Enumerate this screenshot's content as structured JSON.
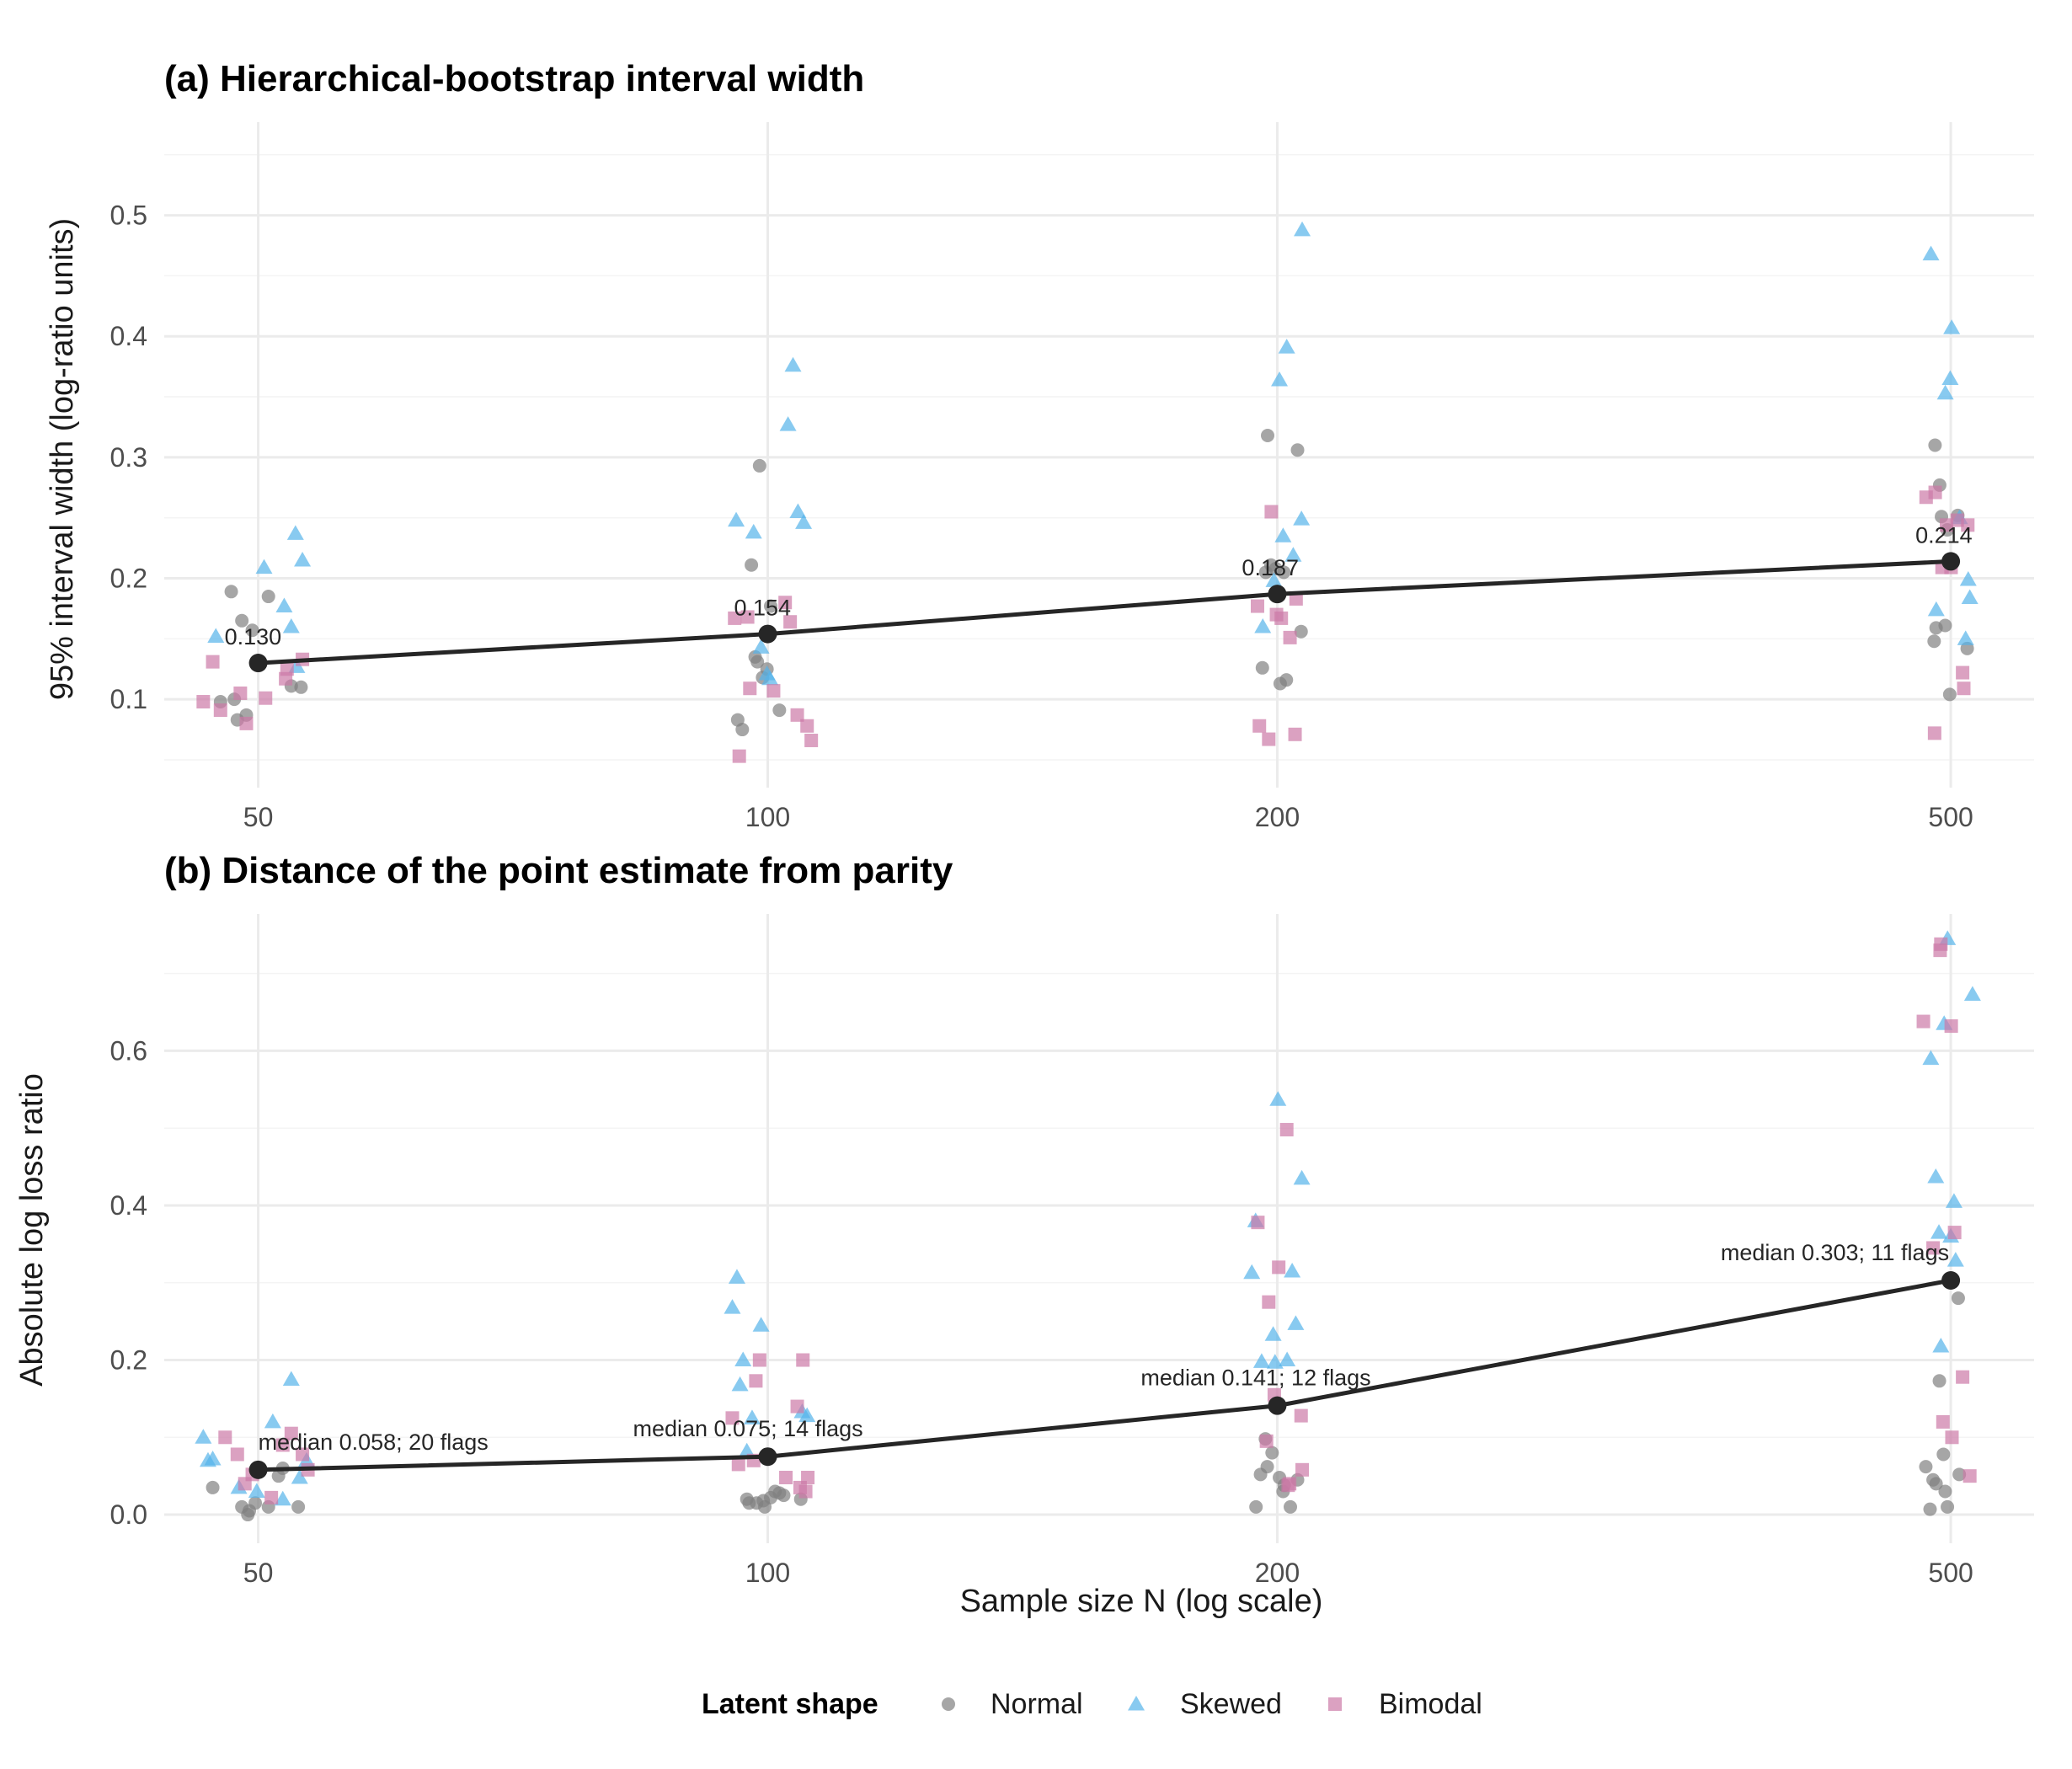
{
  "chart_data": [
    {
      "type": "scatter",
      "title": "(a) Hierarchical-bootstrap interval width",
      "xlabel": "",
      "ylabel": "95% interval width (log-ratio units)",
      "x_scale": "log",
      "x_ticks": [
        50,
        100,
        200,
        500
      ],
      "x_tick_labels": [
        "50",
        "100",
        "200",
        "500"
      ],
      "xlim": [
        44,
        560
      ],
      "y_ticks": [
        0.1,
        0.2,
        0.3,
        0.4,
        0.5
      ],
      "y_tick_labels": [
        "0.1",
        "0.2",
        "0.3",
        "0.4",
        "0.5"
      ],
      "ylim": [
        0.027,
        0.577
      ],
      "grid": true,
      "series": [
        {
          "name": "Normal",
          "shape": "circle",
          "color": "#808080",
          "points": [
            [
              47.5,
              0.098
            ],
            [
              48.2,
              0.189
            ],
            [
              48.6,
              0.083
            ],
            [
              48.9,
              0.165
            ],
            [
              49.2,
              0.087
            ],
            [
              49.6,
              0.157
            ],
            [
              50.7,
              0.185
            ],
            [
              52.3,
              0.111
            ],
            [
              53.0,
              0.11
            ],
            [
              48.4,
              0.1
            ],
            [
              96.0,
              0.083
            ],
            [
              96.6,
              0.075
            ],
            [
              97.8,
              0.211
            ],
            [
              98.3,
              0.135
            ],
            [
              98.6,
              0.131
            ],
            [
              98.9,
              0.293
            ],
            [
              99.3,
              0.118
            ],
            [
              100.4,
              0.177
            ],
            [
              101.6,
              0.091
            ],
            [
              99.9,
              0.125
            ],
            [
              196.0,
              0.126
            ],
            [
              197.4,
              0.318
            ],
            [
              198.3,
              0.211
            ],
            [
              200.8,
              0.113
            ],
            [
              202.5,
              0.116
            ],
            [
              205.6,
              0.306
            ],
            [
              206.6,
              0.156
            ],
            [
              199.6,
              0.208
            ],
            [
              201.8,
              0.205
            ],
            [
              196.9,
              0.205
            ],
            [
              489.4,
              0.31
            ],
            [
              490.1,
              0.159
            ],
            [
              492.5,
              0.277
            ],
            [
              493.7,
              0.251
            ],
            [
              496.2,
              0.161
            ],
            [
              499.3,
              0.104
            ],
            [
              504.8,
              0.252
            ],
            [
              511.3,
              0.142
            ],
            [
              488.8,
              0.148
            ],
            [
              497.6,
              0.24
            ]
          ]
        },
        {
          "name": "Skewed",
          "shape": "triangle",
          "color": "#56B4E9",
          "points": [
            [
              47.2,
              0.152
            ],
            [
              50.4,
              0.209
            ],
            [
              51.8,
              0.177
            ],
            [
              52.3,
              0.16
            ],
            [
              52.6,
              0.237
            ],
            [
              53.1,
              0.215
            ],
            [
              52.7,
              0.127
            ],
            [
              95.8,
              0.248
            ],
            [
              98.1,
              0.238
            ],
            [
              99.1,
              0.143
            ],
            [
              99.9,
              0.121
            ],
            [
              100.3,
              0.117
            ],
            [
              102.8,
              0.327
            ],
            [
              103.5,
              0.376
            ],
            [
              104.2,
              0.255
            ],
            [
              105.0,
              0.246
            ],
            [
              196.1,
              0.16
            ],
            [
              200.6,
              0.364
            ],
            [
              201.6,
              0.235
            ],
            [
              202.6,
              0.391
            ],
            [
              204.4,
              0.219
            ],
            [
              206.7,
              0.249
            ],
            [
              206.9,
              0.488
            ],
            [
              199.1,
              0.198
            ],
            [
              486.7,
              0.468
            ],
            [
              490.2,
              0.174
            ],
            [
              496.3,
              0.353
            ],
            [
              499.6,
              0.365
            ],
            [
              500.6,
              0.407
            ],
            [
              506.0,
              0.25
            ],
            [
              510.2,
              0.15
            ],
            [
              512.0,
              0.199
            ],
            [
              513.1,
              0.184
            ]
          ]
        },
        {
          "name": "Bimodal",
          "shape": "square",
          "color": "#CC79A7",
          "points": [
            [
              46.4,
              0.098
            ],
            [
              47.0,
              0.131
            ],
            [
              47.5,
              0.091
            ],
            [
              48.8,
              0.105
            ],
            [
              49.2,
              0.08
            ],
            [
              50.5,
              0.101
            ],
            [
              51.9,
              0.117
            ],
            [
              53.1,
              0.133
            ],
            [
              52.0,
              0.125
            ],
            [
              95.6,
              0.167
            ],
            [
              96.2,
              0.053
            ],
            [
              97.6,
              0.109
            ],
            [
              100.8,
              0.107
            ],
            [
              102.4,
              0.18
            ],
            [
              103.1,
              0.164
            ],
            [
              104.1,
              0.087
            ],
            [
              105.5,
              0.078
            ],
            [
              106.1,
              0.066
            ],
            [
              97.3,
              0.168
            ],
            [
              194.7,
              0.177
            ],
            [
              195.2,
              0.078
            ],
            [
              197.7,
              0.067
            ],
            [
              198.4,
              0.255
            ],
            [
              201.1,
              0.167
            ],
            [
              203.5,
              0.151
            ],
            [
              204.9,
              0.071
            ],
            [
              205.2,
              0.183
            ],
            [
              199.8,
              0.17
            ],
            [
              483.5,
              0.267
            ],
            [
              489.5,
              0.271
            ],
            [
              494.1,
              0.209
            ],
            [
              497.1,
              0.244
            ],
            [
              504.4,
              0.248
            ],
            [
              508.1,
              0.122
            ],
            [
              508.9,
              0.109
            ],
            [
              511.7,
              0.244
            ],
            [
              489.1,
              0.072
            ],
            [
              500.2,
              0.209
            ]
          ]
        }
      ],
      "trend": {
        "x": [
          50,
          100,
          200,
          500
        ],
        "y": [
          0.13,
          0.154,
          0.187,
          0.214
        ],
        "color": "#262626"
      },
      "annotations": [
        "0.130",
        "0.154",
        "0.187",
        "0.214"
      ]
    },
    {
      "type": "scatter",
      "title": "(b) Distance of the point estimate from parity",
      "xlabel": "Sample size N (log scale)",
      "ylabel": "Absolute log loss ratio",
      "x_scale": "log",
      "x_ticks": [
        50,
        100,
        200,
        500
      ],
      "x_tick_labels": [
        "50",
        "100",
        "200",
        "500"
      ],
      "xlim": [
        44,
        560
      ],
      "y_ticks": [
        0.0,
        0.2,
        0.4,
        0.6
      ],
      "y_tick_labels": [
        "0.0",
        "0.2",
        "0.4",
        "0.6"
      ],
      "ylim": [
        -0.037,
        0.777
      ],
      "grid": true,
      "series": [
        {
          "name": "Normal",
          "shape": "circle",
          "color": "#808080",
          "points": [
            [
              47.0,
              0.035
            ],
            [
              48.9,
              0.01
            ],
            [
              49.3,
              0.0
            ],
            [
              49.8,
              0.015
            ],
            [
              50.7,
              0.01
            ],
            [
              51.4,
              0.05
            ],
            [
              52.8,
              0.01
            ],
            [
              49.4,
              0.005
            ],
            [
              51.7,
              0.06
            ],
            [
              97.2,
              0.02
            ],
            [
              97.5,
              0.015
            ],
            [
              98.5,
              0.015
            ],
            [
              99.4,
              0.018
            ],
            [
              100.4,
              0.022
            ],
            [
              101.0,
              0.03
            ],
            [
              101.6,
              0.028
            ],
            [
              104.6,
              0.02
            ],
            [
              99.6,
              0.01
            ],
            [
              102.2,
              0.025
            ],
            [
              194.3,
              0.01
            ],
            [
              195.5,
              0.052
            ],
            [
              196.8,
              0.098
            ],
            [
              197.3,
              0.062
            ],
            [
              198.6,
              0.08
            ],
            [
              200.6,
              0.048
            ],
            [
              201.6,
              0.03
            ],
            [
              201.9,
              0.038
            ],
            [
              203.6,
              0.01
            ],
            [
              205.6,
              0.045
            ],
            [
              483.3,
              0.062
            ],
            [
              486.1,
              0.007
            ],
            [
              488.1,
              0.045
            ],
            [
              490.1,
              0.04
            ],
            [
              492.3,
              0.173
            ],
            [
              495.0,
              0.078
            ],
            [
              496.2,
              0.03
            ],
            [
              497.7,
              0.01
            ],
            [
              505.1,
              0.28
            ],
            [
              505.8,
              0.052
            ]
          ]
        },
        {
          "name": "Skewed",
          "shape": "triangle",
          "color": "#56B4E9",
          "points": [
            [
              46.4,
              0.1
            ],
            [
              46.7,
              0.07
            ],
            [
              47.0,
              0.072
            ],
            [
              48.7,
              0.035
            ],
            [
              49.9,
              0.03
            ],
            [
              51.0,
              0.12
            ],
            [
              51.7,
              0.02
            ],
            [
              52.3,
              0.175
            ],
            [
              52.9,
              0.048
            ],
            [
              53.4,
              0.07
            ],
            [
              95.3,
              0.268
            ],
            [
              95.9,
              0.307
            ],
            [
              96.3,
              0.168
            ],
            [
              96.7,
              0.2
            ],
            [
              97.2,
              0.082
            ],
            [
              97.9,
              0.125
            ],
            [
              99.1,
              0.245
            ],
            [
              104.8,
              0.133
            ],
            [
              105.5,
              0.128
            ],
            [
              193.2,
              0.313
            ],
            [
              194.2,
              0.38
            ],
            [
              195.8,
              0.198
            ],
            [
              198.9,
              0.233
            ],
            [
              199.4,
              0.197
            ],
            [
              200.2,
              0.537
            ],
            [
              202.7,
              0.2
            ],
            [
              204.1,
              0.315
            ],
            [
              205.1,
              0.247
            ],
            [
              206.8,
              0.435
            ],
            [
              486.6,
              0.59
            ],
            [
              489.9,
              0.437
            ],
            [
              492.0,
              0.365
            ],
            [
              493.3,
              0.218
            ],
            [
              495.5,
              0.635
            ],
            [
              497.8,
              0.745
            ],
            [
              500.0,
              0.36
            ],
            [
              502.2,
              0.405
            ],
            [
              503.3,
              0.329
            ],
            [
              515.0,
              0.673
            ]
          ]
        },
        {
          "name": "Bimodal",
          "shape": "square",
          "color": "#CC79A7",
          "points": [
            [
              47.8,
              0.1
            ],
            [
              48.6,
              0.078
            ],
            [
              49.1,
              0.04
            ],
            [
              49.6,
              0.052
            ],
            [
              50.9,
              0.022
            ],
            [
              51.7,
              0.09
            ],
            [
              52.3,
              0.105
            ],
            [
              53.1,
              0.078
            ],
            [
              53.5,
              0.058
            ],
            [
              95.3,
              0.125
            ],
            [
              96.1,
              0.065
            ],
            [
              98.1,
              0.07
            ],
            [
              98.4,
              0.173
            ],
            [
              98.9,
              0.2
            ],
            [
              102.5,
              0.048
            ],
            [
              104.1,
              0.14
            ],
            [
              104.5,
              0.035
            ],
            [
              104.9,
              0.2
            ],
            [
              105.3,
              0.03
            ],
            [
              105.6,
              0.048
            ],
            [
              194.8,
              0.378
            ],
            [
              197.1,
              0.095
            ],
            [
              197.7,
              0.275
            ],
            [
              199.2,
              0.155
            ],
            [
              200.4,
              0.32
            ],
            [
              202.6,
              0.498
            ],
            [
              203.4,
              0.04
            ],
            [
              206.6,
              0.128
            ],
            [
              206.9,
              0.058
            ],
            [
              203.0,
              0.038
            ],
            [
              481.7,
              0.638
            ],
            [
              488.1,
              0.345
            ],
            [
              492.8,
              0.73
            ],
            [
              493.3,
              0.738
            ],
            [
              494.7,
              0.12
            ],
            [
              500.3,
              0.632
            ],
            [
              500.8,
              0.1
            ],
            [
              502.6,
              0.365
            ],
            [
              508.1,
              0.178
            ],
            [
              513.1,
              0.05
            ]
          ]
        }
      ],
      "trend": {
        "x": [
          50,
          100,
          200,
          500
        ],
        "y": [
          0.058,
          0.075,
          0.141,
          0.303
        ],
        "color": "#262626"
      },
      "annotations": [
        "median 0.058; 20 flags",
        "median 0.075; 14 flags",
        "median 0.141; 12 flags",
        "median 0.303; 11 flags"
      ]
    }
  ],
  "legend": {
    "title": "Latent shape",
    "placement": "bottom",
    "items": [
      {
        "label": "Normal",
        "shape": "circle",
        "color": "#808080"
      },
      {
        "label": "Skewed",
        "shape": "triangle",
        "color": "#56B4E9"
      },
      {
        "label": "Bimodal",
        "shape": "square",
        "color": "#CC79A7"
      }
    ]
  }
}
